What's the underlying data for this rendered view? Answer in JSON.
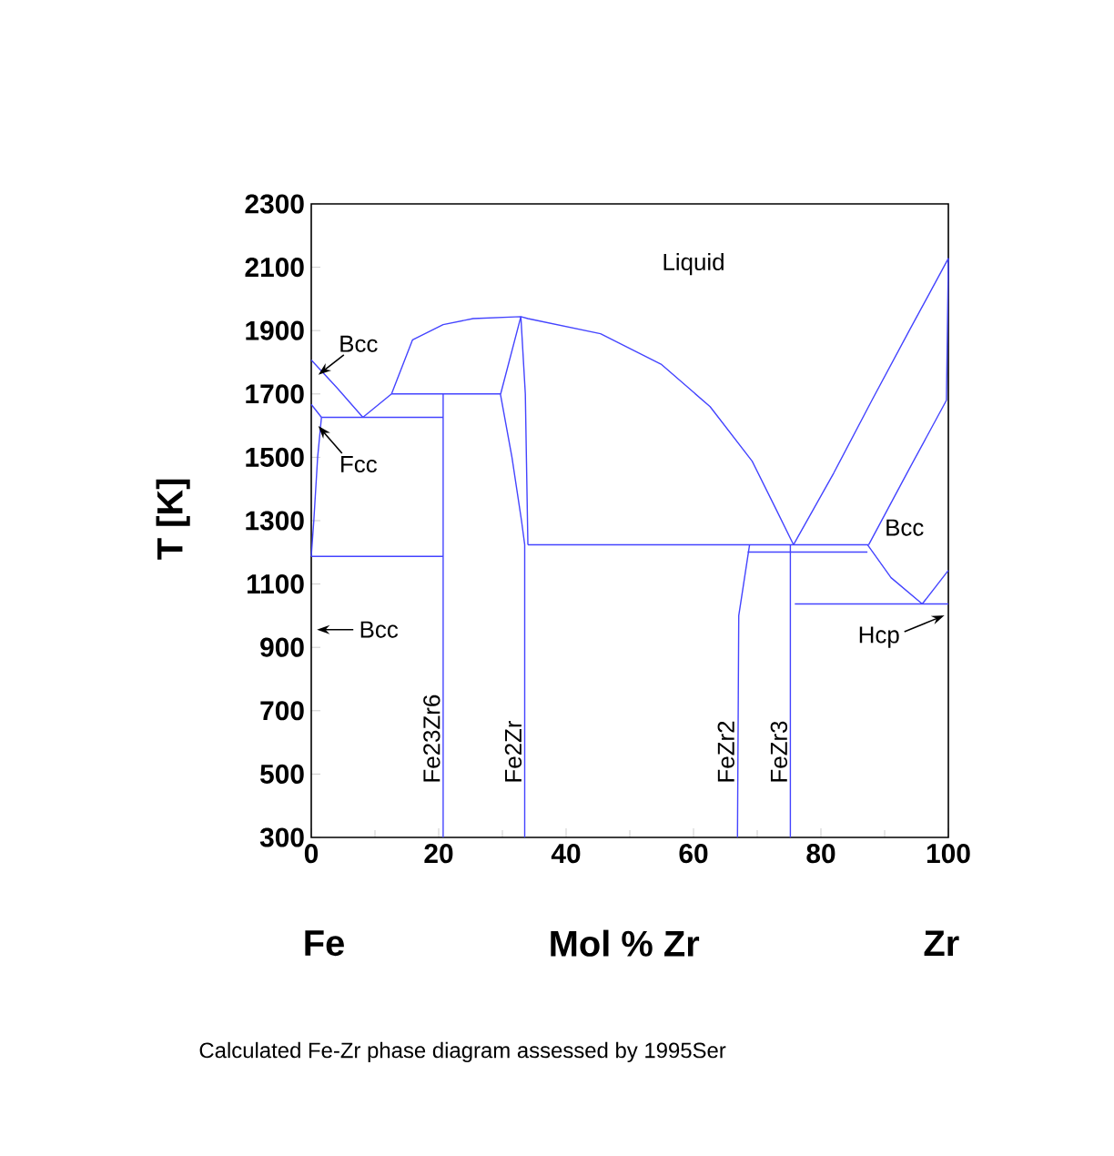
{
  "chart_data": {
    "type": "line",
    "xlabel": "Mol % Zr",
    "ylabel": "T [K]",
    "xlim": [
      0,
      100
    ],
    "xticks": [
      0,
      20,
      40,
      60,
      80,
      100
    ],
    "ylim": [
      300,
      2300
    ],
    "yticks": [
      300,
      500,
      700,
      900,
      1100,
      1300,
      1500,
      1700,
      1900,
      2100,
      2300
    ],
    "annotations": [
      "Liquid",
      "Bcc",
      "Fcc",
      "Bcc",
      "Hcp",
      "Bcc",
      "Fe",
      "Zr",
      "Calculated Fe-Zr phase diagram assessed by 1995Ser"
    ],
    "series": [
      {
        "color": "#4444ff",
        "x": [
          0,
          4,
          8.1
        ],
        "values": [
          1807,
          1720,
          1626
        ]
      },
      {
        "color": "#4444ff",
        "x": [
          8.1,
          12.6
        ],
        "values": [
          1626,
          1700
        ]
      },
      {
        "color": "#4444ff",
        "x": [
          12.6,
          15.9,
          20.7,
          25.4,
          32.9,
          34,
          45.4,
          54.9,
          62.6,
          69.2,
          73,
          75.7
        ],
        "values": [
          1700,
          1871,
          1919,
          1938,
          1944,
          1938,
          1890,
          1794,
          1660,
          1488,
          1334,
          1224
        ]
      },
      {
        "color": "#4444ff",
        "x": [
          75.7,
          82,
          88,
          94,
          100
        ],
        "values": [
          1224,
          1450,
          1680,
          1905,
          2128
        ]
      },
      {
        "color": "#4444ff",
        "x": [
          87.5,
          93.5,
          99.7,
          100
        ],
        "values": [
          1224,
          1450,
          1680,
          2128
        ]
      },
      {
        "color": "#4444ff",
        "x": [
          87.3,
          91,
          95.9
        ],
        "values": [
          1224,
          1120,
          1037
        ]
      },
      {
        "color": "#4444ff",
        "x": [
          95.9,
          100
        ],
        "values": [
          1037,
          1143
        ]
      },
      {
        "color": "#4444ff",
        "x": [
          75.9,
          100
        ],
        "values": [
          1037,
          1037
        ]
      },
      {
        "color": "#4444ff",
        "x": [
          34,
          87.5
        ],
        "values": [
          1224,
          1224
        ]
      },
      {
        "color": "#4444ff",
        "x": [
          68.5,
          87.3
        ],
        "values": [
          1201,
          1201
        ]
      },
      {
        "name": "FeZr3",
        "color": "#4444ff",
        "x": [
          75.2,
          75.2
        ],
        "values": [
          300,
          1224
        ]
      },
      {
        "name": "FeZr2",
        "color": "#4444ff",
        "x": [
          66.9,
          67.1,
          68.8
        ],
        "values": [
          300,
          1000,
          1224
        ]
      },
      {
        "name": "Fe2Zr",
        "color": "#4444ff",
        "x": [
          33.5,
          33.5,
          33.0,
          31.5,
          29.7,
          32.9
        ],
        "values": [
          300,
          1224,
          1300,
          1500,
          1698,
          1944
        ]
      },
      {
        "color": "#4444ff",
        "x": [
          32.9,
          33.6,
          34.0
        ],
        "values": [
          1944,
          1700,
          1224
        ]
      },
      {
        "name": "Fe23Zr6",
        "color": "#4444ff",
        "x": [
          20.7,
          20.7
        ],
        "values": [
          300,
          1700
        ]
      },
      {
        "color": "#4444ff",
        "x": [
          12.6,
          29.7
        ],
        "values": [
          1700,
          1700
        ]
      },
      {
        "color": "#4444ff",
        "x": [
          1.6,
          20.7
        ],
        "values": [
          1626,
          1626
        ]
      },
      {
        "color": "#4444ff",
        "x": [
          0,
          20.7
        ],
        "values": [
          1187,
          1187
        ]
      },
      {
        "color": "#4444ff",
        "x": [
          0,
          1.6
        ],
        "values": [
          1667,
          1626
        ]
      },
      {
        "color": "#4444ff",
        "x": [
          1.6,
          1.0,
          0.4,
          0
        ],
        "values": [
          1626,
          1500,
          1300,
          1187
        ]
      }
    ]
  }
}
